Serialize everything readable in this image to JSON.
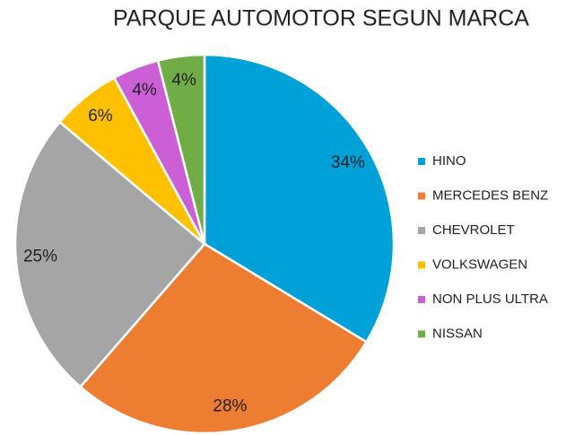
{
  "chart_data": {
    "type": "pie",
    "title": "PARQUE AUTOMOTOR SEGUN MARCA",
    "categories": [
      "HINO",
      "MERCEDES BENZ",
      "CHEVROLET",
      "VOLKSWAGEN",
      "NON PLUS ULTRA",
      "NISSAN"
    ],
    "values": [
      34,
      28,
      25,
      6,
      4,
      4
    ],
    "value_labels": [
      "34%",
      "28%",
      "25%",
      "6%",
      "4%",
      "4%"
    ],
    "colors": [
      "#00a0d8",
      "#ed7d31",
      "#a5a5a5",
      "#ffc000",
      "#cc5fd6",
      "#70ad47"
    ],
    "legend": "right"
  }
}
